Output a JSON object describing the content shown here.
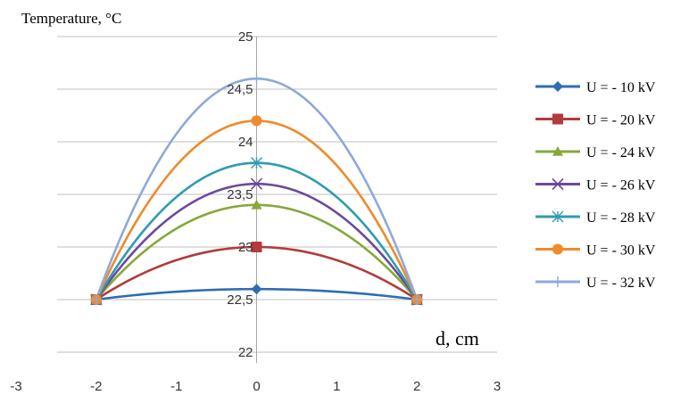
{
  "chart_data": {
    "type": "line",
    "title": "Temperature, °C",
    "xlabel": "d, cm",
    "ylabel": "Temperature, °C",
    "xlim": [
      -3,
      3
    ],
    "ylim": [
      22,
      25
    ],
    "x_ticks": [
      "-3",
      "-2",
      "-1",
      "0",
      "1",
      "2",
      "3"
    ],
    "y_ticks": [
      "22",
      "22,5",
      "23",
      "23,5",
      "24",
      "24,5",
      "25"
    ],
    "grid": true,
    "legend_position": "right",
    "x": [
      -2,
      0,
      2
    ],
    "series": [
      {
        "name": "U = - 10 kV",
        "values": [
          22.5,
          22.6,
          22.5
        ],
        "color": "#2e6db4",
        "marker": "diamond"
      },
      {
        "name": "U = - 20 kV",
        "values": [
          22.5,
          23.0,
          22.5
        ],
        "color": "#b33b3b",
        "marker": "square"
      },
      {
        "name": "U = - 24 kV",
        "values": [
          22.5,
          23.4,
          22.5
        ],
        "color": "#86a83a",
        "marker": "triangle"
      },
      {
        "name": "U = - 26 kV",
        "values": [
          22.5,
          23.6,
          22.5
        ],
        "color": "#6b4a9b",
        "marker": "x"
      },
      {
        "name": "U = - 28 kV",
        "values": [
          22.5,
          23.8,
          22.5
        ],
        "color": "#2f9bb0",
        "marker": "star"
      },
      {
        "name": "U = - 30 kV",
        "values": [
          22.5,
          24.2,
          22.5
        ],
        "color": "#f08a2a",
        "marker": "circle"
      },
      {
        "name": "U = - 32 kV",
        "values": [
          22.5,
          24.6,
          22.5
        ],
        "color": "#8fa9d8",
        "marker": "plus"
      }
    ]
  }
}
